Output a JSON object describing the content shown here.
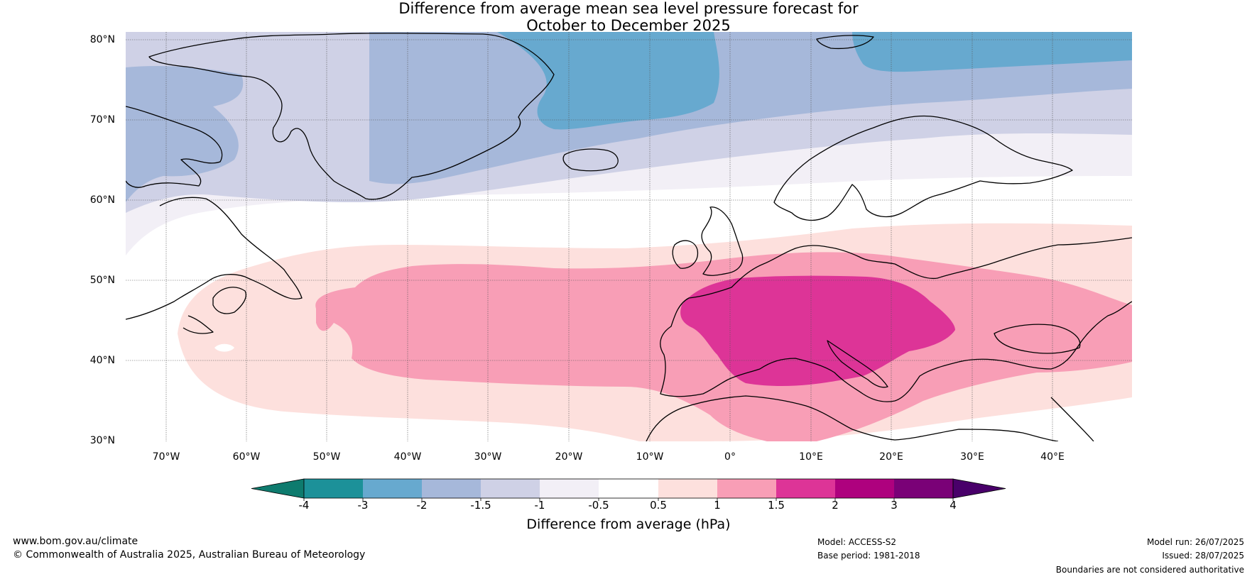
{
  "title": {
    "line1": "Difference from average mean sea level pressure forecast for",
    "line2": "October to December 2025"
  },
  "map": {
    "lat_labels": [
      "80°N",
      "70°N",
      "60°N",
      "50°N",
      "40°N",
      "30°N"
    ],
    "lon_labels": [
      "70°W",
      "60°W",
      "50°W",
      "40°W",
      "30°W",
      "20°W",
      "10°W",
      "0°",
      "10°E",
      "20°E",
      "30°E",
      "40°E"
    ],
    "colors": {
      "c_m3": "#1c9199",
      "c_m2": "#67a9cf",
      "c_m15": "#a6b8da",
      "c_m1": "#cfd1e6",
      "c_m05": "#f2eff6",
      "c_0": "#ffffff",
      "c_p05": "#fde0dd",
      "c_p1": "#f89eb6",
      "c_p15": "#dd3497",
      "coast": "#000000",
      "border": "#808080"
    }
  },
  "colorbar": {
    "ticks": [
      "-4",
      "-3",
      "-2",
      "-1.5",
      "-1",
      "-0.5",
      "0.5",
      "1",
      "1.5",
      "2",
      "3",
      "4"
    ],
    "segment_colors": [
      "#0e7b6e",
      "#1c9199",
      "#67a9cf",
      "#a6b8da",
      "#cfd1e6",
      "#f2eff6",
      "#ffffff",
      "#fde0dd",
      "#f89eb6",
      "#dd3497",
      "#ae017e",
      "#7a0177",
      "#49006a"
    ],
    "label": "Difference from average (hPa)"
  },
  "footer": {
    "website": "www.bom.gov.au/climate",
    "copyright": "© Commonwealth of Australia 2025, Australian Bureau of Meteorology",
    "model": "Model: ACCESS-S2",
    "base_period": "Base period: 1981-2018",
    "model_run": "Model run: 26/07/2025",
    "issued": "Issued: 28/07/2025",
    "disclaimer": "Boundaries are not considered authoritative"
  }
}
